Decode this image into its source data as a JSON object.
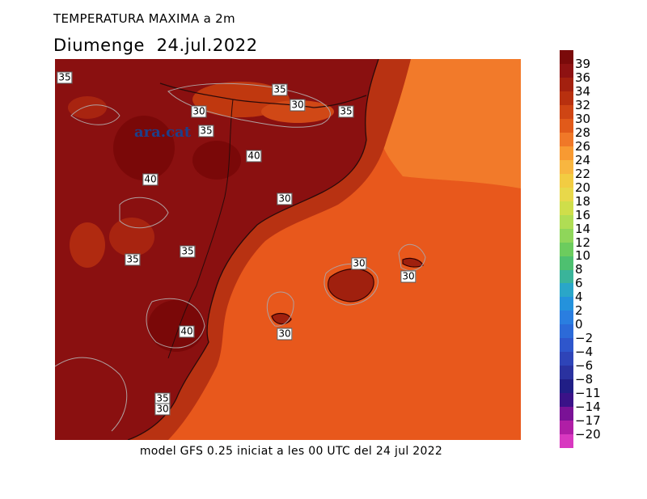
{
  "map": {
    "title": "TEMPERATURA MAXIMA a 2m",
    "subtitle": "Diumenge  24.jul.2022",
    "footer": "model GFS 0.25 iniciat a les 00 UTC del 24 jul 2022",
    "watermark": "ara.cat",
    "contour_labels": [
      "35",
      "35",
      "30",
      "30",
      "35",
      "35",
      "40",
      "40",
      "30",
      "35",
      "35",
      "30",
      "30",
      "30",
      "40",
      "35",
      "30"
    ]
  },
  "legend": {
    "labels": [
      "39",
      "36",
      "34",
      "32",
      "30",
      "28",
      "26",
      "24",
      "22",
      "20",
      "18",
      "16",
      "14",
      "12",
      "10",
      "8",
      "6",
      "4",
      "2",
      "0",
      "−2",
      "−4",
      "−6",
      "−8",
      "−11",
      "−14",
      "−17",
      "−20"
    ],
    "colors": [
      "#7a0a0a",
      "#8e1212",
      "#a3200f",
      "#b8300f",
      "#cf4514",
      "#e15a1a",
      "#f07828",
      "#f89a32",
      "#f8b640",
      "#f2cc42",
      "#e8d84a",
      "#cfde4a",
      "#b0dd54",
      "#8fd65a",
      "#6ccc5e",
      "#4ec070",
      "#3ab49a",
      "#2aa6c8",
      "#2492dc",
      "#2a7ee0",
      "#2c6ad8",
      "#2e56cc",
      "#2e44b8",
      "#2a32a0",
      "#201e86",
      "#3a1288",
      "#7a1296",
      "#b01ea6",
      "#d838c0"
    ]
  }
}
